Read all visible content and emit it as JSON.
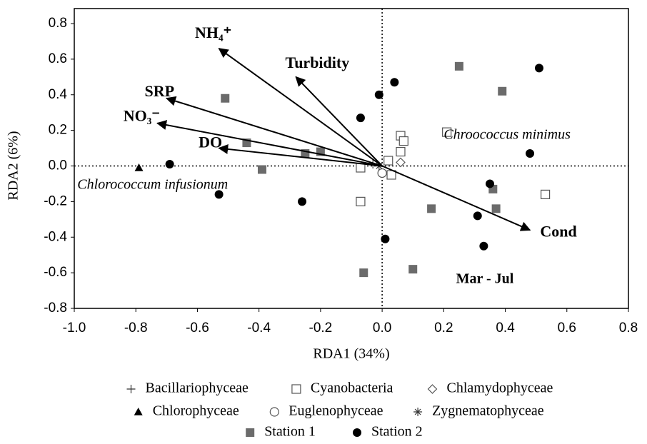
{
  "chart_data": {
    "type": "scatter",
    "x_label": "RDA1 (34%)",
    "y_label": "RDA2 (6%)",
    "xlim": [
      -1.0,
      0.8
    ],
    "ylim": [
      -0.8,
      0.8
    ],
    "xticks": [
      {
        "value": -1.0,
        "label": "-1.0"
      },
      -0.8,
      -0.6,
      -0.4,
      -0.2,
      {
        "value": 0,
        "label": "0.0"
      },
      0.2,
      0.4,
      0.6,
      0.8
    ],
    "yticks": [
      0.8,
      0.6,
      0.4,
      0.2,
      {
        "value": 0,
        "label": "0.0"
      },
      -0.2,
      -0.4,
      -0.6,
      -0.8
    ],
    "zero_lines": true,
    "series": [
      {
        "name": "Bacillariophyceae",
        "marker": "plus",
        "color": "#333333",
        "x": [
          -0.03
        ],
        "y": [
          0.01
        ]
      },
      {
        "name": "Cyanobacteria",
        "marker": "open-square",
        "color": "#555555",
        "x": [
          -0.07,
          -0.07,
          0.21,
          0.53,
          0.06,
          0.07,
          0.06,
          0.02,
          0.03
        ],
        "y": [
          -0.01,
          -0.2,
          0.19,
          -0.16,
          0.17,
          0.14,
          0.08,
          0.03,
          -0.05
        ]
      },
      {
        "name": "Chlamydophyceae",
        "marker": "open-diamond",
        "color": "#555555",
        "x": [
          0.06
        ],
        "y": [
          0.02
        ]
      },
      {
        "name": "Chlorophyceae",
        "marker": "triangle",
        "color": "#000000",
        "x": [
          -0.79
        ],
        "y": [
          -0.01
        ]
      },
      {
        "name": "Euglenophyceae",
        "marker": "open-circle",
        "color": "#555555",
        "x": [
          0.0
        ],
        "y": [
          -0.04
        ]
      },
      {
        "name": "Zygnematophyceae",
        "marker": "asterisk",
        "color": "#333333",
        "x": [
          -0.01
        ],
        "y": [
          0.0
        ]
      },
      {
        "name": "Station 1",
        "marker": "square",
        "color": "#6b6b6b",
        "x": [
          -0.51,
          -0.44,
          -0.39,
          -0.25,
          -0.2,
          -0.06,
          0.1,
          0.16,
          0.25,
          0.39,
          0.36,
          0.37
        ],
        "y": [
          0.38,
          0.13,
          -0.02,
          0.07,
          0.08,
          -0.6,
          -0.58,
          -0.24,
          0.56,
          0.42,
          -0.13,
          -0.24
        ]
      },
      {
        "name": "Station 2",
        "marker": "circle",
        "color": "#000000",
        "x": [
          -0.69,
          -0.53,
          -0.26,
          -0.07,
          -0.01,
          0.04,
          0.01,
          0.31,
          0.33,
          0.35,
          0.48,
          0.51
        ],
        "y": [
          0.01,
          -0.16,
          -0.2,
          0.27,
          0.4,
          0.47,
          -0.41,
          -0.28,
          -0.45,
          -0.1,
          0.07,
          0.55
        ]
      }
    ],
    "arrows": [
      {
        "name": "NH₄⁺",
        "x": -0.53,
        "y": 0.66
      },
      {
        "name": "Turbidity",
        "x": -0.28,
        "y": 0.5
      },
      {
        "name": "SRP",
        "x": -0.7,
        "y": 0.38
      },
      {
        "name": "NO₃⁻",
        "x": -0.73,
        "y": 0.24
      },
      {
        "name": "DO",
        "x": -0.53,
        "y": 0.1
      },
      {
        "name": "Cond",
        "x": 0.48,
        "y": -0.36
      }
    ],
    "annotations": [
      {
        "text": "Chroococcus minimus",
        "x": 0.2,
        "y": 0.17,
        "style": "italic"
      },
      {
        "text": "Chlorococcum infusionum",
        "x": -0.99,
        "y": -0.11,
        "style": "italic"
      },
      {
        "text": "Mar - Jul",
        "x": 0.24,
        "y": -0.64,
        "style": "bold"
      }
    ]
  }
}
